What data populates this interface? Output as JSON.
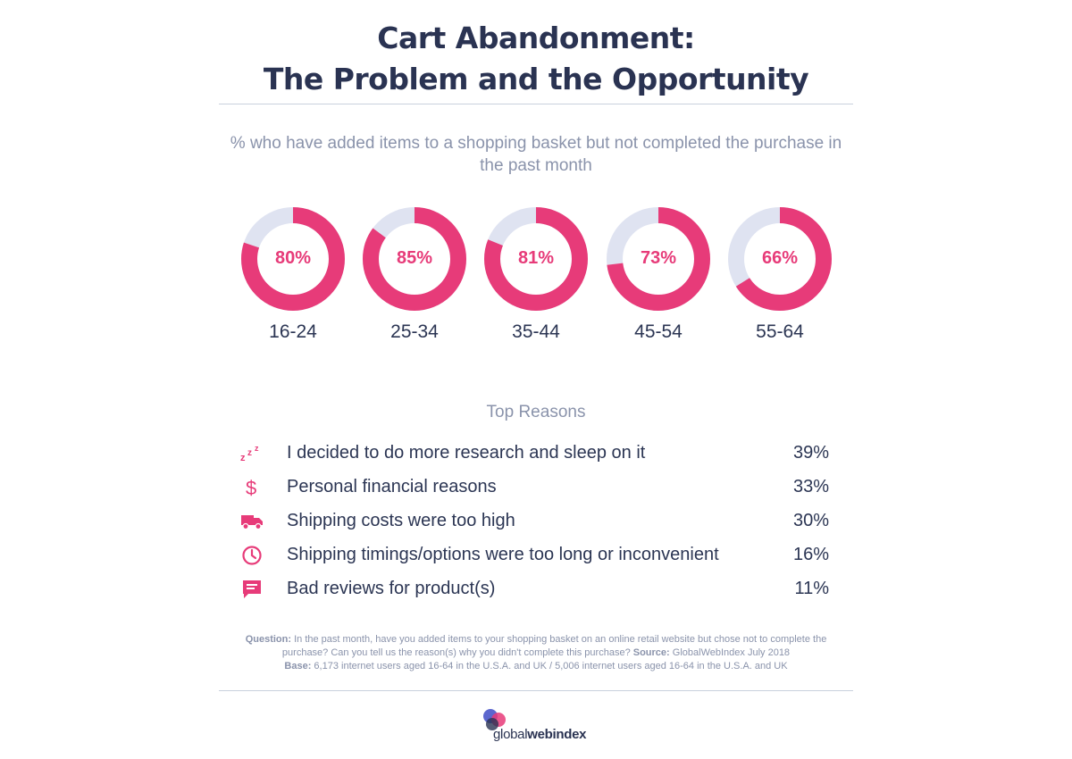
{
  "header": {
    "title_line1": "Cart Abandonment:",
    "title_line2": "The Problem and the Opportunity"
  },
  "chart_data": [
    {
      "type": "donut",
      "title": "% who have added items to a shopping basket but not completed the purchase in the past month",
      "categories": [
        "16-24",
        "25-34",
        "35-44",
        "45-54",
        "55-64"
      ],
      "values": [
        80,
        85,
        81,
        73,
        66
      ],
      "value_labels": [
        "80%",
        "85%",
        "81%",
        "73%",
        "66%"
      ],
      "colors": {
        "filled": "#e73b79",
        "track": "#dfe3f1"
      }
    },
    {
      "type": "table",
      "title": "Top Reasons",
      "rows": [
        {
          "icon": "sleep-zzz-icon",
          "label": "I decided to do more research and sleep on it",
          "value": 39,
          "value_label": "39%"
        },
        {
          "icon": "dollar-icon",
          "label": "Personal financial reasons",
          "value": 33,
          "value_label": "33%"
        },
        {
          "icon": "truck-icon",
          "label": "Shipping costs were too high",
          "value": 30,
          "value_label": "30%"
        },
        {
          "icon": "clock-icon",
          "label": "Shipping timings/options were too long or inconvenient",
          "value": 16,
          "value_label": "16%"
        },
        {
          "icon": "review-comment-icon",
          "label": "Bad reviews for product(s)",
          "value": 11,
          "value_label": "11%"
        }
      ]
    }
  ],
  "notes": {
    "question_label": "Question:",
    "question_text": "In the past month, have you added items to your shopping basket on an online retail website but chose not to complete the purchase? Can you tell us the reason(s) why you didn't complete this purchase?",
    "source_label": "Source:",
    "source_text": "GlobalWebIndex July 2018",
    "base_label": "Base:",
    "base_text": "6,173 internet users aged 16-64 in the U.S.A. and UK / 5,006 internet users aged 16-64 in the U.S.A. and UK"
  },
  "logo": {
    "part1": "global",
    "part2": "webindex"
  },
  "colors": {
    "accent": "#e73b79",
    "title": "#2a3352",
    "muted": "#8a93ab"
  }
}
